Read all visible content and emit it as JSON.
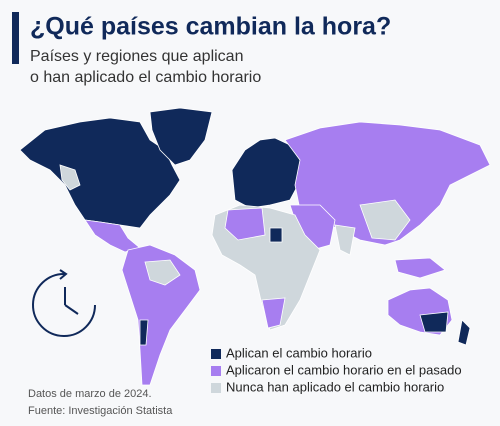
{
  "header": {
    "title": "¿Qué países cambian la hora?",
    "subtitle": [
      "Países y regiones que aplican",
      "o han aplicado el cambio horario"
    ]
  },
  "legend": {
    "items": [
      {
        "label": "Aplican el cambio horario",
        "color": "#10295a"
      },
      {
        "label": "Aplicaron el cambio horario en el pasado",
        "color": "#a77ef0"
      },
      {
        "label": "Nunca han aplicado el cambio horario",
        "color": "#cfd7dc"
      }
    ]
  },
  "footer": {
    "date": "Datos de marzo de 2024.",
    "source": "Fuente: Investigación Statista"
  }
}
